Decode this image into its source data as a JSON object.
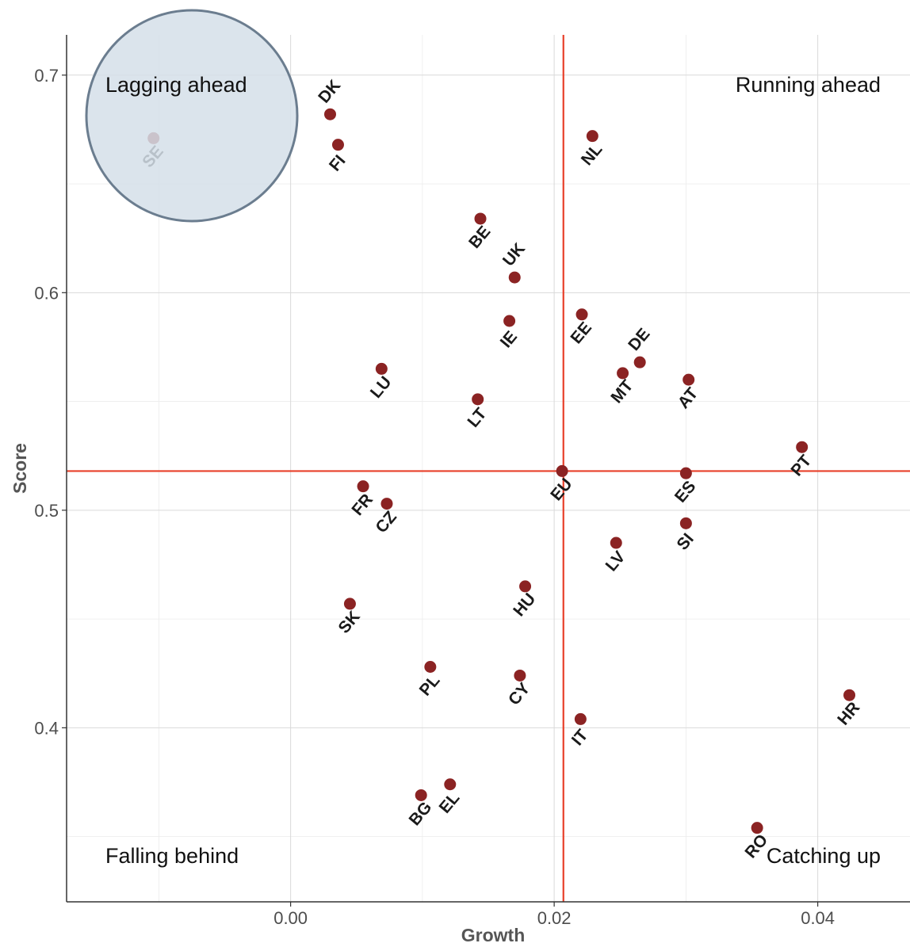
{
  "chart_data": {
    "type": "scatter",
    "xlabel": "Growth",
    "ylabel": "Score",
    "xlim": [
      -0.017,
      0.047
    ],
    "ylim": [
      0.32,
      0.7185
    ],
    "x_ticks": [
      0.0,
      0.02,
      0.04
    ],
    "x_tick_labels": [
      "0.00",
      "0.02",
      "0.04"
    ],
    "y_ticks": [
      0.4,
      0.5,
      0.6,
      0.7
    ],
    "y_tick_labels": [
      "0.4",
      "0.5",
      "0.6",
      "0.7"
    ],
    "x_minor_ticks": [
      -0.01,
      0.01,
      0.03
    ],
    "y_minor_ticks": [
      0.35,
      0.45,
      0.55,
      0.65
    ],
    "grid": true,
    "point_color": "#8b2323",
    "reference_line_color": "#e8402a",
    "reference_lines": {
      "x": 0.0207,
      "y": 0.518
    },
    "highlight": {
      "label": "SE",
      "fill": "#d5dfe9",
      "stroke": "#6b7d8f"
    },
    "quadrant_labels": [
      {
        "text": "Lagging ahead",
        "position": "top-left"
      },
      {
        "text": "Running ahead",
        "position": "top-right"
      },
      {
        "text": "Falling behind",
        "position": "bottom-left"
      },
      {
        "text": "Catching up",
        "position": "bottom-right"
      }
    ],
    "points": [
      {
        "label": "SE",
        "x": -0.0104,
        "y": 0.671
      },
      {
        "label": "DK",
        "x": 0.003,
        "y": 0.682
      },
      {
        "label": "FI",
        "x": 0.0036,
        "y": 0.668
      },
      {
        "label": "NL",
        "x": 0.0229,
        "y": 0.672
      },
      {
        "label": "BE",
        "x": 0.0144,
        "y": 0.634
      },
      {
        "label": "UK",
        "x": 0.017,
        "y": 0.607
      },
      {
        "label": "IE",
        "x": 0.0166,
        "y": 0.587
      },
      {
        "label": "EE",
        "x": 0.0221,
        "y": 0.59
      },
      {
        "label": "DE",
        "x": 0.0265,
        "y": 0.568
      },
      {
        "label": "MT",
        "x": 0.0252,
        "y": 0.563
      },
      {
        "label": "AT",
        "x": 0.0302,
        "y": 0.56
      },
      {
        "label": "LU",
        "x": 0.0069,
        "y": 0.565
      },
      {
        "label": "LT",
        "x": 0.0142,
        "y": 0.551
      },
      {
        "label": "PT",
        "x": 0.0388,
        "y": 0.529
      },
      {
        "label": "EU",
        "x": 0.0206,
        "y": 0.518
      },
      {
        "label": "ES",
        "x": 0.03,
        "y": 0.517
      },
      {
        "label": "FR",
        "x": 0.0055,
        "y": 0.511
      },
      {
        "label": "CZ",
        "x": 0.0073,
        "y": 0.503
      },
      {
        "label": "SI",
        "x": 0.03,
        "y": 0.494
      },
      {
        "label": "LV",
        "x": 0.0247,
        "y": 0.485
      },
      {
        "label": "HU",
        "x": 0.0178,
        "y": 0.465
      },
      {
        "label": "SK",
        "x": 0.0045,
        "y": 0.457
      },
      {
        "label": "PL",
        "x": 0.0106,
        "y": 0.428
      },
      {
        "label": "CY",
        "x": 0.0174,
        "y": 0.424
      },
      {
        "label": "HR",
        "x": 0.0424,
        "y": 0.415
      },
      {
        "label": "IT",
        "x": 0.022,
        "y": 0.404
      },
      {
        "label": "EL",
        "x": 0.0121,
        "y": 0.374
      },
      {
        "label": "BG",
        "x": 0.0099,
        "y": 0.369
      },
      {
        "label": "RO",
        "x": 0.0354,
        "y": 0.354
      }
    ]
  }
}
